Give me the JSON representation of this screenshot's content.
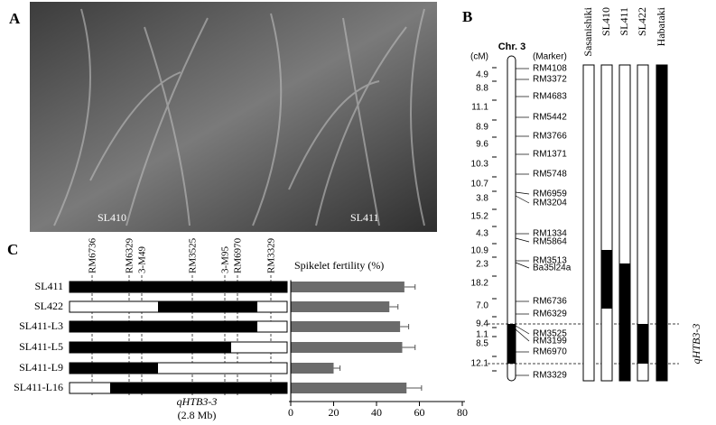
{
  "panel_a": {
    "label": "A",
    "lines": [
      "SL410",
      "SL411"
    ]
  },
  "panel_b": {
    "label": "B",
    "cm_header": "(cM)",
    "chromosome": "Chr. 3",
    "marker_header": "(Marker)",
    "cm": [
      "4.9",
      "8.8",
      "11.1",
      "8.9",
      "9.6",
      "10.3",
      "10.7",
      "3.8",
      "15.2",
      "4.3",
      "10.9",
      "2.3",
      "18.2",
      "7.0",
      "9.4",
      "1.1",
      "8.5",
      "12.1"
    ],
    "markers": [
      "RM4108",
      "RM3372",
      "RM4683",
      "RM5442",
      "RM3766",
      "RM1371",
      "RM5748",
      "RM6959",
      "RM3204",
      "RM1334",
      "RM5864",
      "RM3513",
      "Ba35l24a",
      "RM6736",
      "RM6329",
      "RM3525",
      "RM3199",
      "RM6970",
      "RM3329"
    ],
    "lines": [
      "Sasanishiki",
      "SL410",
      "SL411",
      "SL422",
      "Habataki"
    ],
    "qtl": "qHTB3-3"
  },
  "panel_c": {
    "label": "C",
    "markers": [
      "RM6736",
      "RM6329",
      "3-M49",
      "RM3525",
      "3-M95",
      "RM6970",
      "RM3329"
    ],
    "qtl": "qHTB3-3",
    "qtl_size": "(2.8 Mb)"
  },
  "chart_data": {
    "type": "bar",
    "orientation": "horizontal",
    "x_label": "Spikelet fertility (%)",
    "categories": [
      "SL411",
      "SL422",
      "SL411-L3",
      "SL411-L5",
      "SL411-L9",
      "SL411-L16"
    ],
    "values": [
      53,
      46,
      51,
      52,
      20,
      54
    ],
    "errors": [
      5,
      4,
      4,
      6,
      3,
      7
    ],
    "color": "#6b6b6b",
    "xlim": [
      0,
      80
    ],
    "xticks": [
      0,
      20,
      40,
      60,
      80
    ]
  }
}
